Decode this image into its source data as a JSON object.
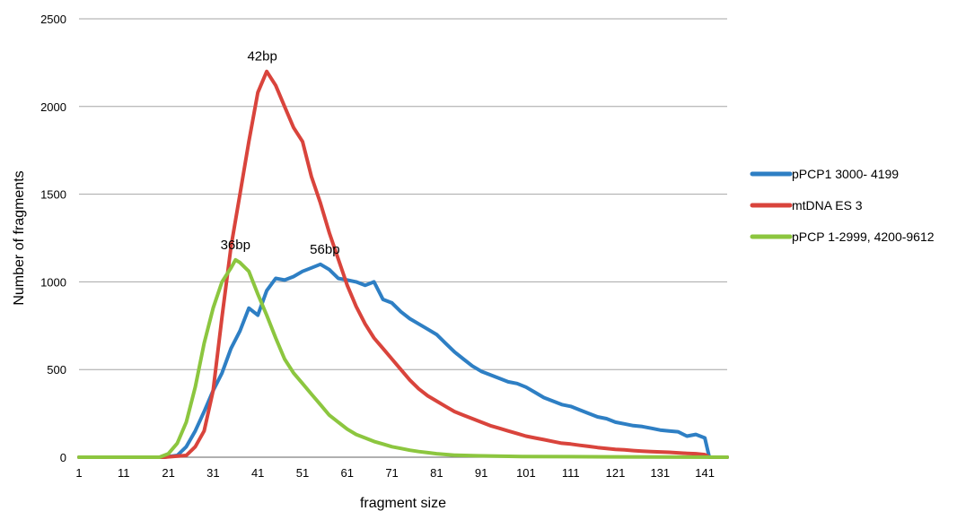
{
  "chart_data": {
    "type": "line",
    "title": "",
    "xlabel": "fragment size",
    "ylabel": "Number of fragments",
    "xlim": [
      1,
      146
    ],
    "ylim": [
      0,
      2500
    ],
    "x_ticks": [
      "1",
      "11",
      "21",
      "31",
      "41",
      "51",
      "61",
      "71",
      "81",
      "91",
      "101",
      "111",
      "121",
      "131",
      "141"
    ],
    "y_ticks": [
      "0",
      "500",
      "1000",
      "1500",
      "2000",
      "2500"
    ],
    "grid": "horizontal",
    "legend_position": "right",
    "annotations": [
      {
        "text": "42bp",
        "x": 42,
        "y": 2200
      },
      {
        "text": "36bp",
        "x": 36,
        "y": 1125
      },
      {
        "text": "56bp",
        "x": 56,
        "y": 1100
      }
    ],
    "series": [
      {
        "name": "pPCP1 3000- 4199",
        "color": "#2e7fc4",
        "points": [
          [
            1,
            0
          ],
          [
            10,
            0
          ],
          [
            20,
            0
          ],
          [
            23,
            10
          ],
          [
            25,
            60
          ],
          [
            27,
            150
          ],
          [
            29,
            260
          ],
          [
            31,
            380
          ],
          [
            33,
            480
          ],
          [
            35,
            620
          ],
          [
            37,
            720
          ],
          [
            39,
            850
          ],
          [
            41,
            810
          ],
          [
            43,
            950
          ],
          [
            45,
            1020
          ],
          [
            47,
            1010
          ],
          [
            49,
            1030
          ],
          [
            51,
            1060
          ],
          [
            53,
            1080
          ],
          [
            55,
            1100
          ],
          [
            57,
            1070
          ],
          [
            59,
            1020
          ],
          [
            61,
            1010
          ],
          [
            63,
            1000
          ],
          [
            65,
            980
          ],
          [
            67,
            1000
          ],
          [
            69,
            900
          ],
          [
            71,
            880
          ],
          [
            73,
            830
          ],
          [
            75,
            790
          ],
          [
            77,
            760
          ],
          [
            79,
            730
          ],
          [
            81,
            700
          ],
          [
            83,
            650
          ],
          [
            85,
            600
          ],
          [
            87,
            560
          ],
          [
            89,
            520
          ],
          [
            91,
            490
          ],
          [
            93,
            470
          ],
          [
            95,
            450
          ],
          [
            97,
            430
          ],
          [
            99,
            420
          ],
          [
            101,
            400
          ],
          [
            103,
            370
          ],
          [
            105,
            340
          ],
          [
            107,
            320
          ],
          [
            109,
            300
          ],
          [
            111,
            290
          ],
          [
            113,
            270
          ],
          [
            115,
            250
          ],
          [
            117,
            230
          ],
          [
            119,
            220
          ],
          [
            121,
            200
          ],
          [
            123,
            190
          ],
          [
            125,
            180
          ],
          [
            127,
            175
          ],
          [
            129,
            165
          ],
          [
            131,
            155
          ],
          [
            133,
            150
          ],
          [
            135,
            145
          ],
          [
            137,
            120
          ],
          [
            139,
            130
          ],
          [
            141,
            110
          ],
          [
            142,
            0
          ],
          [
            146,
            0
          ]
        ]
      },
      {
        "name": "mtDNA ES 3",
        "color": "#d9443c",
        "points": [
          [
            1,
            0
          ],
          [
            20,
            0
          ],
          [
            25,
            10
          ],
          [
            27,
            60
          ],
          [
            29,
            150
          ],
          [
            31,
            380
          ],
          [
            33,
            800
          ],
          [
            35,
            1200
          ],
          [
            37,
            1500
          ],
          [
            39,
            1800
          ],
          [
            41,
            2080
          ],
          [
            43,
            2200
          ],
          [
            45,
            2120
          ],
          [
            47,
            2000
          ],
          [
            49,
            1880
          ],
          [
            51,
            1800
          ],
          [
            53,
            1600
          ],
          [
            55,
            1450
          ],
          [
            57,
            1280
          ],
          [
            59,
            1130
          ],
          [
            61,
            980
          ],
          [
            63,
            860
          ],
          [
            65,
            760
          ],
          [
            67,
            680
          ],
          [
            69,
            620
          ],
          [
            71,
            560
          ],
          [
            73,
            500
          ],
          [
            75,
            440
          ],
          [
            77,
            390
          ],
          [
            79,
            350
          ],
          [
            81,
            320
          ],
          [
            83,
            290
          ],
          [
            85,
            260
          ],
          [
            87,
            240
          ],
          [
            89,
            220
          ],
          [
            91,
            200
          ],
          [
            93,
            180
          ],
          [
            95,
            165
          ],
          [
            97,
            150
          ],
          [
            99,
            135
          ],
          [
            101,
            120
          ],
          [
            103,
            110
          ],
          [
            105,
            100
          ],
          [
            107,
            90
          ],
          [
            109,
            80
          ],
          [
            111,
            75
          ],
          [
            113,
            68
          ],
          [
            115,
            62
          ],
          [
            117,
            55
          ],
          [
            119,
            50
          ],
          [
            121,
            45
          ],
          [
            123,
            42
          ],
          [
            125,
            38
          ],
          [
            127,
            35
          ],
          [
            129,
            32
          ],
          [
            131,
            30
          ],
          [
            133,
            28
          ],
          [
            135,
            25
          ],
          [
            137,
            22
          ],
          [
            139,
            20
          ],
          [
            141,
            15
          ],
          [
            142,
            0
          ],
          [
            146,
            0
          ]
        ]
      },
      {
        "name": "pPCP 1-2999, 4200-9612",
        "color": "#8cc63f",
        "points": [
          [
            1,
            0
          ],
          [
            19,
            0
          ],
          [
            21,
            20
          ],
          [
            23,
            80
          ],
          [
            25,
            200
          ],
          [
            27,
            400
          ],
          [
            29,
            650
          ],
          [
            31,
            850
          ],
          [
            33,
            1000
          ],
          [
            35,
            1080
          ],
          [
            36,
            1125
          ],
          [
            37,
            1110
          ],
          [
            39,
            1060
          ],
          [
            41,
            930
          ],
          [
            43,
            810
          ],
          [
            45,
            680
          ],
          [
            47,
            560
          ],
          [
            49,
            480
          ],
          [
            51,
            420
          ],
          [
            53,
            360
          ],
          [
            55,
            300
          ],
          [
            57,
            240
          ],
          [
            59,
            200
          ],
          [
            61,
            160
          ],
          [
            63,
            130
          ],
          [
            65,
            110
          ],
          [
            67,
            90
          ],
          [
            69,
            75
          ],
          [
            71,
            60
          ],
          [
            73,
            50
          ],
          [
            75,
            40
          ],
          [
            77,
            32
          ],
          [
            79,
            26
          ],
          [
            81,
            20
          ],
          [
            85,
            12
          ],
          [
            90,
            8
          ],
          [
            100,
            4
          ],
          [
            120,
            2
          ],
          [
            146,
            0
          ]
        ]
      }
    ]
  }
}
